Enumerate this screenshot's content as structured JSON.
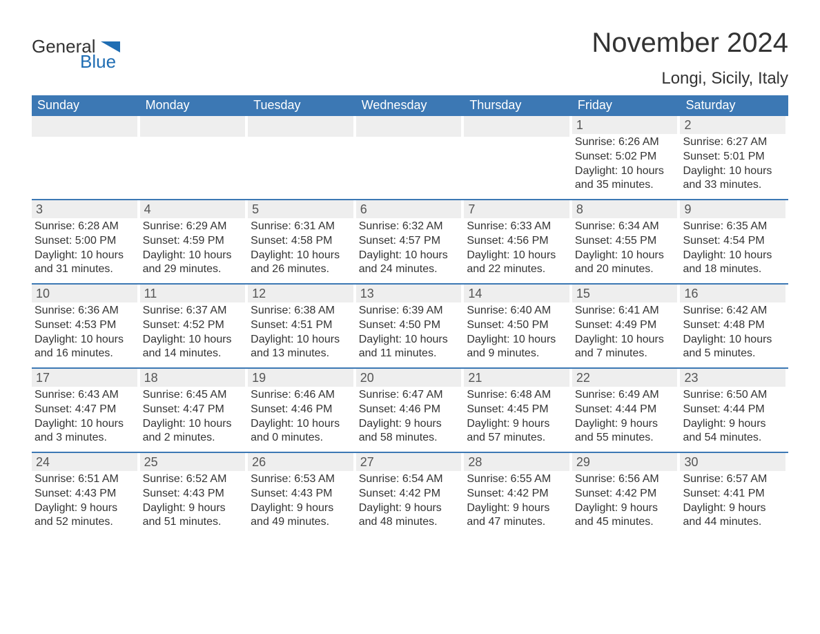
{
  "colors": {
    "brand_blue": "#3c78b4",
    "header_bg": "#3c78b4",
    "header_text": "#ffffff",
    "daynum_bg": "#eeeeee",
    "text": "#333333",
    "logo_blue": "#1f6db3",
    "week_border": "#3c78b4",
    "background": "#ffffff"
  },
  "logo": {
    "word1": "General",
    "word2": "Blue"
  },
  "title": "November 2024",
  "location": "Longi, Sicily, Italy",
  "days_of_week": [
    "Sunday",
    "Monday",
    "Tuesday",
    "Wednesday",
    "Thursday",
    "Friday",
    "Saturday"
  ],
  "weeks": [
    [
      {
        "blank": true
      },
      {
        "blank": true
      },
      {
        "blank": true
      },
      {
        "blank": true
      },
      {
        "blank": true
      },
      {
        "n": "1",
        "sunrise": "Sunrise: 6:26 AM",
        "sunset": "Sunset: 5:02 PM",
        "daylight": "Daylight: 10 hours and 35 minutes."
      },
      {
        "n": "2",
        "sunrise": "Sunrise: 6:27 AM",
        "sunset": "Sunset: 5:01 PM",
        "daylight": "Daylight: 10 hours and 33 minutes."
      }
    ],
    [
      {
        "n": "3",
        "sunrise": "Sunrise: 6:28 AM",
        "sunset": "Sunset: 5:00 PM",
        "daylight": "Daylight: 10 hours and 31 minutes."
      },
      {
        "n": "4",
        "sunrise": "Sunrise: 6:29 AM",
        "sunset": "Sunset: 4:59 PM",
        "daylight": "Daylight: 10 hours and 29 minutes."
      },
      {
        "n": "5",
        "sunrise": "Sunrise: 6:31 AM",
        "sunset": "Sunset: 4:58 PM",
        "daylight": "Daylight: 10 hours and 26 minutes."
      },
      {
        "n": "6",
        "sunrise": "Sunrise: 6:32 AM",
        "sunset": "Sunset: 4:57 PM",
        "daylight": "Daylight: 10 hours and 24 minutes."
      },
      {
        "n": "7",
        "sunrise": "Sunrise: 6:33 AM",
        "sunset": "Sunset: 4:56 PM",
        "daylight": "Daylight: 10 hours and 22 minutes."
      },
      {
        "n": "8",
        "sunrise": "Sunrise: 6:34 AM",
        "sunset": "Sunset: 4:55 PM",
        "daylight": "Daylight: 10 hours and 20 minutes."
      },
      {
        "n": "9",
        "sunrise": "Sunrise: 6:35 AM",
        "sunset": "Sunset: 4:54 PM",
        "daylight": "Daylight: 10 hours and 18 minutes."
      }
    ],
    [
      {
        "n": "10",
        "sunrise": "Sunrise: 6:36 AM",
        "sunset": "Sunset: 4:53 PM",
        "daylight": "Daylight: 10 hours and 16 minutes."
      },
      {
        "n": "11",
        "sunrise": "Sunrise: 6:37 AM",
        "sunset": "Sunset: 4:52 PM",
        "daylight": "Daylight: 10 hours and 14 minutes."
      },
      {
        "n": "12",
        "sunrise": "Sunrise: 6:38 AM",
        "sunset": "Sunset: 4:51 PM",
        "daylight": "Daylight: 10 hours and 13 minutes."
      },
      {
        "n": "13",
        "sunrise": "Sunrise: 6:39 AM",
        "sunset": "Sunset: 4:50 PM",
        "daylight": "Daylight: 10 hours and 11 minutes."
      },
      {
        "n": "14",
        "sunrise": "Sunrise: 6:40 AM",
        "sunset": "Sunset: 4:50 PM",
        "daylight": "Daylight: 10 hours and 9 minutes."
      },
      {
        "n": "15",
        "sunrise": "Sunrise: 6:41 AM",
        "sunset": "Sunset: 4:49 PM",
        "daylight": "Daylight: 10 hours and 7 minutes."
      },
      {
        "n": "16",
        "sunrise": "Sunrise: 6:42 AM",
        "sunset": "Sunset: 4:48 PM",
        "daylight": "Daylight: 10 hours and 5 minutes."
      }
    ],
    [
      {
        "n": "17",
        "sunrise": "Sunrise: 6:43 AM",
        "sunset": "Sunset: 4:47 PM",
        "daylight": "Daylight: 10 hours and 3 minutes."
      },
      {
        "n": "18",
        "sunrise": "Sunrise: 6:45 AM",
        "sunset": "Sunset: 4:47 PM",
        "daylight": "Daylight: 10 hours and 2 minutes."
      },
      {
        "n": "19",
        "sunrise": "Sunrise: 6:46 AM",
        "sunset": "Sunset: 4:46 PM",
        "daylight": "Daylight: 10 hours and 0 minutes."
      },
      {
        "n": "20",
        "sunrise": "Sunrise: 6:47 AM",
        "sunset": "Sunset: 4:46 PM",
        "daylight": "Daylight: 9 hours and 58 minutes."
      },
      {
        "n": "21",
        "sunrise": "Sunrise: 6:48 AM",
        "sunset": "Sunset: 4:45 PM",
        "daylight": "Daylight: 9 hours and 57 minutes."
      },
      {
        "n": "22",
        "sunrise": "Sunrise: 6:49 AM",
        "sunset": "Sunset: 4:44 PM",
        "daylight": "Daylight: 9 hours and 55 minutes."
      },
      {
        "n": "23",
        "sunrise": "Sunrise: 6:50 AM",
        "sunset": "Sunset: 4:44 PM",
        "daylight": "Daylight: 9 hours and 54 minutes."
      }
    ],
    [
      {
        "n": "24",
        "sunrise": "Sunrise: 6:51 AM",
        "sunset": "Sunset: 4:43 PM",
        "daylight": "Daylight: 9 hours and 52 minutes."
      },
      {
        "n": "25",
        "sunrise": "Sunrise: 6:52 AM",
        "sunset": "Sunset: 4:43 PM",
        "daylight": "Daylight: 9 hours and 51 minutes."
      },
      {
        "n": "26",
        "sunrise": "Sunrise: 6:53 AM",
        "sunset": "Sunset: 4:43 PM",
        "daylight": "Daylight: 9 hours and 49 minutes."
      },
      {
        "n": "27",
        "sunrise": "Sunrise: 6:54 AM",
        "sunset": "Sunset: 4:42 PM",
        "daylight": "Daylight: 9 hours and 48 minutes."
      },
      {
        "n": "28",
        "sunrise": "Sunrise: 6:55 AM",
        "sunset": "Sunset: 4:42 PM",
        "daylight": "Daylight: 9 hours and 47 minutes."
      },
      {
        "n": "29",
        "sunrise": "Sunrise: 6:56 AM",
        "sunset": "Sunset: 4:42 PM",
        "daylight": "Daylight: 9 hours and 45 minutes."
      },
      {
        "n": "30",
        "sunrise": "Sunrise: 6:57 AM",
        "sunset": "Sunset: 4:41 PM",
        "daylight": "Daylight: 9 hours and 44 minutes."
      }
    ]
  ]
}
